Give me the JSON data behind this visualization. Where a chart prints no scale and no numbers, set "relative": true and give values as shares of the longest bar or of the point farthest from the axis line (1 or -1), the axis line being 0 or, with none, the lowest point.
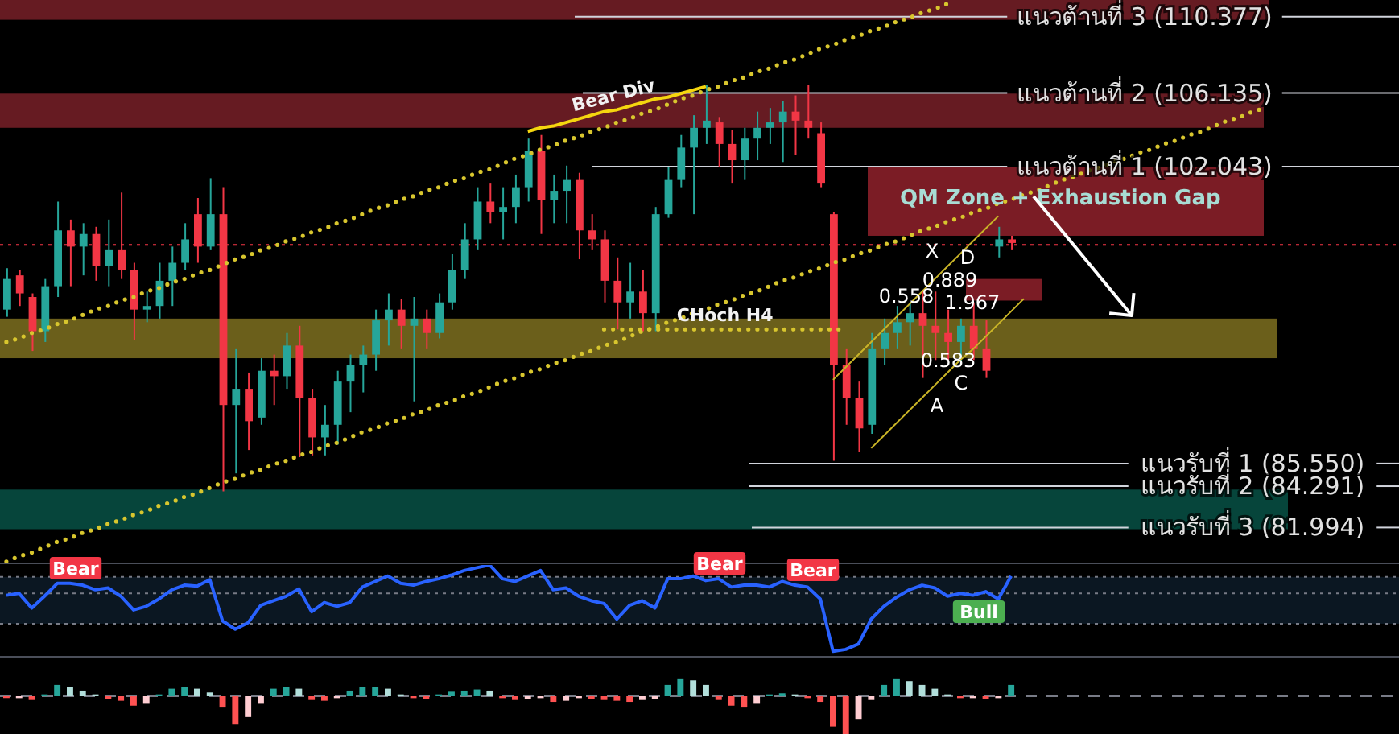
{
  "chart_data": [
    {
      "type": "candlestick",
      "categories": [
        null,
        null,
        null,
        null,
        null,
        null,
        null,
        null,
        null,
        null,
        null,
        null,
        null,
        null,
        null,
        null,
        null,
        null,
        null,
        null,
        null,
        null,
        null,
        null,
        null,
        null,
        null,
        null,
        null,
        null,
        null,
        null,
        null,
        null,
        null,
        null,
        null,
        null,
        null,
        null,
        null,
        null,
        null,
        null,
        null,
        null,
        null,
        null,
        null,
        null,
        null,
        null,
        null,
        null,
        null,
        null,
        null,
        null,
        null,
        null,
        null,
        null,
        null,
        null,
        null,
        null,
        null,
        null,
        null,
        null,
        null,
        null,
        null,
        null,
        null,
        null,
        null,
        null,
        null,
        null,
        null,
        null,
        null,
        null,
        null,
        null,
        null,
        null,
        null,
        null,
        null,
        null,
        null,
        null,
        null,
        null,
        null,
        null,
        null,
        null,
        null,
        null,
        null,
        null,
        null,
        null,
        null,
        null,
        null,
        null
      ],
      "ohlc": [
        [
          94.1,
          96.4,
          93.7,
          95.8
        ],
        [
          96.0,
          96.3,
          94.3,
          95.0
        ],
        [
          94.8,
          95.0,
          91.8,
          92.9
        ],
        [
          92.9,
          95.8,
          92.3,
          95.4
        ],
        [
          95.4,
          100.1,
          94.8,
          98.5
        ],
        [
          98.5,
          99.1,
          95.4,
          97.6
        ],
        [
          97.6,
          98.9,
          96.0,
          98.3
        ],
        [
          98.3,
          98.7,
          95.7,
          96.5
        ],
        [
          96.5,
          99.1,
          95.4,
          97.4
        ],
        [
          97.4,
          100.6,
          95.8,
          96.3
        ],
        [
          96.3,
          96.7,
          92.4,
          94.1
        ],
        [
          94.1,
          95.1,
          93.4,
          94.3
        ],
        [
          94.3,
          96.7,
          93.6,
          95.7
        ],
        [
          95.7,
          97.6,
          94.3,
          96.7
        ],
        [
          96.7,
          98.9,
          96.3,
          98.0
        ],
        [
          99.4,
          100.3,
          96.7,
          97.6
        ],
        [
          97.6,
          101.4,
          97.4,
          99.4
        ],
        [
          99.4,
          100.9,
          84.0,
          88.8
        ],
        [
          88.8,
          91.9,
          85.0,
          89.7
        ],
        [
          89.7,
          90.6,
          86.3,
          87.9
        ],
        [
          88.1,
          91.4,
          87.7,
          90.7
        ],
        [
          90.7,
          91.6,
          88.8,
          90.4
        ],
        [
          90.4,
          92.8,
          89.7,
          92.1
        ],
        [
          92.1,
          93.2,
          85.9,
          89.2
        ],
        [
          89.2,
          89.7,
          86.0,
          87.0
        ],
        [
          87.0,
          88.8,
          86.0,
          87.7
        ],
        [
          87.7,
          90.7,
          86.6,
          90.1
        ],
        [
          90.1,
          91.6,
          88.4,
          91.0
        ],
        [
          91.0,
          92.1,
          89.5,
          91.6
        ],
        [
          91.6,
          94.1,
          90.7,
          93.5
        ],
        [
          93.5,
          95.0,
          92.1,
          94.1
        ],
        [
          94.1,
          94.7,
          91.9,
          93.2
        ],
        [
          93.2,
          94.8,
          89.0,
          93.6
        ],
        [
          93.6,
          94.1,
          91.9,
          92.8
        ],
        [
          92.8,
          95.0,
          92.5,
          94.5
        ],
        [
          94.5,
          97.2,
          94.1,
          96.3
        ],
        [
          96.3,
          98.9,
          95.8,
          98.0
        ],
        [
          98.0,
          100.9,
          97.4,
          100.1
        ],
        [
          100.1,
          101.1,
          98.9,
          99.5
        ],
        [
          99.5,
          100.9,
          98.0,
          99.8
        ],
        [
          99.8,
          101.6,
          98.9,
          100.9
        ],
        [
          100.9,
          103.6,
          100.1,
          102.9
        ],
        [
          102.9,
          103.8,
          98.3,
          100.2
        ],
        [
          100.2,
          101.6,
          98.9,
          100.7
        ],
        [
          100.7,
          102.1,
          98.9,
          101.3
        ],
        [
          101.3,
          101.7,
          96.9,
          98.5
        ],
        [
          98.5,
          99.4,
          97.4,
          98.0
        ],
        [
          98.0,
          98.5,
          94.5,
          95.7
        ],
        [
          95.7,
          97.0,
          93.0,
          94.5
        ],
        [
          94.5,
          96.7,
          93.6,
          95.1
        ],
        [
          95.1,
          96.3,
          92.9,
          93.9
        ],
        [
          93.9,
          99.8,
          92.9,
          99.4
        ],
        [
          99.4,
          102.0,
          99.2,
          101.3
        ],
        [
          101.3,
          103.8,
          100.9,
          103.1
        ],
        [
          103.1,
          104.9,
          99.4,
          104.2
        ],
        [
          104.2,
          106.6,
          103.3,
          104.6
        ],
        [
          104.5,
          104.8,
          102.0,
          103.3
        ],
        [
          103.3,
          104.1,
          101.1,
          102.4
        ],
        [
          102.4,
          104.2,
          101.3,
          103.6
        ],
        [
          103.6,
          105.1,
          102.4,
          104.2
        ],
        [
          104.2,
          105.3,
          103.3,
          104.5
        ],
        [
          104.5,
          105.7,
          102.3,
          105.1
        ],
        [
          105.1,
          106.0,
          102.7,
          104.6
        ],
        [
          104.6,
          106.6,
          103.6,
          104.2
        ],
        [
          103.9,
          104.5,
          100.9,
          101.1
        ],
        [
          99.4,
          99.5,
          85.7,
          91.0
        ],
        [
          91.0,
          91.9,
          87.7,
          89.2
        ],
        [
          89.2,
          90.1,
          86.2,
          87.5
        ],
        [
          87.7,
          92.8,
          87.2,
          91.9
        ],
        [
          91.9,
          93.6,
          91.0,
          92.8
        ],
        [
          92.8,
          94.3,
          91.9,
          93.4
        ],
        [
          93.4,
          94.5,
          92.1,
          93.9
        ],
        [
          93.9,
          95.2,
          90.3,
          93.2
        ],
        [
          93.2,
          95.1,
          91.3,
          92.8
        ],
        [
          92.8,
          94.1,
          91.3,
          92.3
        ],
        [
          92.3,
          93.6,
          91.0,
          93.2
        ],
        [
          93.2,
          94.5,
          91.3,
          91.9
        ],
        [
          91.9,
          93.5,
          90.3,
          90.7
        ],
        [
          97.6,
          98.7,
          97.0,
          98.0
        ],
        [
          98.0,
          98.2,
          97.4,
          97.8
        ],
        null,
        null,
        null,
        null,
        null,
        null,
        null,
        null,
        null,
        null,
        null,
        null,
        null,
        null,
        null,
        null,
        null,
        null,
        null,
        null,
        null,
        null,
        null,
        null,
        null,
        null,
        null,
        null,
        null,
        null
      ],
      "colors": [
        "#26a69a",
        "#f23645",
        "#f23645",
        "#26a69a",
        "#26a69a",
        "#f23645",
        "#26a69a",
        "#f23645",
        "#26a69a",
        "#f23645",
        "#f23645",
        "#26a69a",
        "#26a69a",
        "#26a69a",
        "#26a69a",
        "#f23645",
        "#26a69a",
        "#f23645",
        "#26a69a",
        "#f23645",
        "#26a69a",
        "#f23645",
        "#26a69a",
        "#f23645",
        "#f23645",
        "#26a69a",
        "#26a69a",
        "#26a69a",
        "#26a69a",
        "#26a69a",
        "#26a69a",
        "#f23645",
        "#26a69a",
        "#f23645",
        "#26a69a",
        "#26a69a",
        "#26a69a",
        "#26a69a",
        "#f23645",
        "#26a69a",
        "#26a69a",
        "#26a69a",
        "#f23645",
        "#26a69a",
        "#26a69a",
        "#f23645",
        "#f23645",
        "#f23645",
        "#f23645",
        "#26a69a",
        "#f23645",
        "#26a69a",
        "#26a69a",
        "#26a69a",
        "#26a69a",
        "#26a69a",
        "#f23645",
        "#f23645",
        "#26a69a",
        "#26a69a",
        "#26a69a",
        "#26a69a",
        "#f23645",
        "#f23645",
        "#f23645",
        "#f23645",
        "#f23645",
        "#f23645",
        "#26a69a",
        "#26a69a",
        "#26a69a",
        "#26a69a",
        "#f23645",
        "#f23645",
        "#f23645",
        "#26a69a",
        "#f23645",
        "#f23645",
        "#26a69a",
        "#f23645",
        null,
        null,
        null,
        null,
        null,
        null,
        null,
        null,
        null,
        null,
        null,
        null,
        null,
        null,
        null,
        null,
        null,
        null,
        null,
        null,
        null,
        null,
        null,
        null,
        null,
        null,
        null,
        null,
        null,
        null
      ],
      "ylim": [
        80,
        111.3
      ],
      "tick_labels": false,
      "series": [
        {
          "type": "line",
          "color": "#d8c62e",
          "line_style": "dotted",
          "values": [
            92.3,
            92.5,
            92.8,
            93.0,
            93.3,
            93.5,
            93.8,
            94.1,
            94.3,
            94.6,
            94.8,
            95.1,
            95.3,
            95.6,
            95.8,
            96.1,
            96.3,
            96.6,
            96.9,
            97.1,
            97.4,
            97.6,
            97.9,
            98.1,
            98.4,
            98.6,
            98.9,
            99.1,
            99.4,
            99.7,
            99.9,
            100.2,
            100.4,
            100.7,
            100.9,
            101.2,
            101.4,
            101.7,
            101.9,
            102.2,
            102.5,
            102.7,
            103.0,
            103.2,
            103.5,
            103.7,
            104.0,
            104.2,
            104.5,
            104.7,
            105.0,
            105.2,
            105.5,
            105.8,
            106.0,
            106.3,
            106.5,
            106.8,
            107.0,
            107.3,
            107.5,
            107.8,
            108.0,
            108.3,
            108.6,
            108.8,
            109.1,
            109.3,
            109.6,
            109.8,
            110.1,
            110.3,
            110.6,
            110.8,
            111.1,
            null,
            null,
            null,
            null,
            null,
            null,
            null,
            null,
            null,
            null,
            null,
            null,
            null,
            null,
            null,
            null,
            null,
            null,
            null,
            null,
            null,
            null,
            null,
            null,
            null,
            null,
            null,
            null,
            null,
            null,
            null,
            null,
            null,
            null,
            null
          ]
        },
        {
          "type": "line",
          "color": "#d8c62e",
          "line_style": "dotted",
          "values": [
            80.1,
            80.4,
            80.6,
            80.9,
            81.2,
            81.4,
            81.7,
            81.9,
            82.2,
            82.4,
            82.7,
            82.9,
            83.2,
            83.4,
            83.7,
            83.9,
            84.2,
            84.5,
            84.7,
            85.0,
            85.2,
            85.5,
            85.7,
            86.0,
            86.2,
            86.5,
            86.7,
            87.0,
            87.3,
            87.5,
            87.8,
            88.0,
            88.3,
            88.5,
            88.8,
            89.0,
            89.3,
            89.5,
            89.8,
            90.1,
            90.3,
            90.6,
            90.8,
            91.1,
            91.3,
            91.6,
            91.8,
            92.1,
            92.3,
            92.6,
            92.9,
            93.1,
            93.4,
            93.6,
            93.9,
            94.1,
            94.4,
            94.6,
            94.9,
            95.1,
            95.4,
            95.7,
            95.9,
            96.2,
            96.4,
            96.7,
            96.9,
            97.2,
            97.4,
            97.7,
            97.9,
            98.2,
            98.5,
            98.7,
            99.0,
            99.2,
            99.5,
            99.7,
            100.0,
            100.2,
            100.5,
            100.7,
            101.0,
            101.3,
            101.5,
            101.8,
            102.0,
            102.3,
            102.5,
            102.8,
            103.0,
            103.3,
            103.5,
            103.8,
            104.0,
            104.3,
            104.6,
            104.8,
            105.1,
            105.3,
            null,
            null,
            null,
            null,
            null,
            null,
            null,
            null,
            null,
            null
          ]
        },
        {
          "type": "line",
          "name": "Bear Div",
          "color": "#f5d60f",
          "values": [
            null,
            null,
            null,
            null,
            null,
            null,
            null,
            null,
            null,
            null,
            null,
            null,
            null,
            null,
            null,
            null,
            null,
            null,
            null,
            null,
            null,
            null,
            null,
            null,
            null,
            null,
            null,
            null,
            null,
            null,
            null,
            null,
            null,
            null,
            null,
            null,
            null,
            null,
            null,
            null,
            null,
            104.0,
            104.2,
            104.3,
            104.5,
            104.7,
            104.9,
            105.1,
            105.2,
            105.4,
            105.6,
            105.8,
            105.9,
            106.1,
            106.3,
            106.5,
            null,
            null,
            null,
            null,
            null,
            null,
            null,
            null,
            null,
            null,
            null,
            null,
            null,
            null,
            null,
            null,
            null,
            null,
            null,
            null,
            null,
            null,
            null,
            null,
            null,
            null,
            null,
            null,
            null,
            null,
            null,
            null,
            null,
            null,
            null,
            null,
            null,
            null,
            null,
            null,
            null,
            null,
            null,
            null,
            null,
            null,
            null,
            null,
            null,
            null,
            null,
            null,
            null,
            null
          ]
        },
        {
          "type": "line",
          "name": "CHoch H4",
          "color": "#d8c62e",
          "line_style": "dotted",
          "values": [
            null,
            null,
            null,
            null,
            null,
            null,
            null,
            null,
            null,
            null,
            null,
            null,
            null,
            null,
            null,
            null,
            null,
            null,
            null,
            null,
            null,
            null,
            null,
            null,
            null,
            null,
            null,
            null,
            null,
            null,
            null,
            null,
            null,
            null,
            null,
            null,
            null,
            null,
            null,
            null,
            null,
            null,
            null,
            null,
            null,
            null,
            null,
            93.0,
            93.0,
            93.0,
            93.0,
            93.0,
            93.0,
            93.0,
            93.0,
            93.0,
            93.0,
            93.0,
            93.0,
            93.0,
            93.0,
            93.0,
            93.0,
            93.0,
            93.0,
            93.0,
            93.0,
            null,
            null,
            null,
            null,
            null,
            null,
            null,
            null,
            null,
            null,
            null,
            null,
            null,
            null,
            null,
            null,
            null,
            null,
            null,
            null,
            null,
            null,
            null,
            null,
            null,
            null,
            null,
            null,
            null,
            null,
            null,
            null,
            null,
            null,
            null,
            null,
            null,
            null,
            null,
            null,
            null,
            null,
            null
          ]
        },
        {
          "type": "line",
          "color": "#c9b427",
          "values": [
            null,
            null,
            null,
            null,
            null,
            null,
            null,
            null,
            null,
            null,
            null,
            null,
            null,
            null,
            null,
            null,
            null,
            null,
            null,
            null,
            null,
            null,
            null,
            null,
            null,
            null,
            null,
            null,
            null,
            null,
            null,
            null,
            null,
            null,
            null,
            null,
            null,
            null,
            null,
            null,
            null,
            null,
            null,
            null,
            null,
            null,
            null,
            null,
            null,
            null,
            null,
            null,
            null,
            null,
            null,
            null,
            null,
            null,
            null,
            null,
            null,
            null,
            null,
            null,
            null,
            90.2,
            90.9,
            91.6,
            92.3,
            93.0,
            93.7,
            94.4,
            95.1,
            95.8,
            96.5,
            97.2,
            97.9,
            98.6,
            99.3,
            null,
            null,
            null,
            null,
            null,
            null,
            null,
            null,
            null,
            null,
            null,
            null,
            null,
            null,
            null,
            null,
            null,
            null,
            null,
            null,
            null,
            null,
            null,
            null,
            null,
            null,
            null,
            null,
            null,
            null,
            null
          ]
        },
        {
          "type": "line",
          "color": "#c9b427",
          "values": [
            null,
            null,
            null,
            null,
            null,
            null,
            null,
            null,
            null,
            null,
            null,
            null,
            null,
            null,
            null,
            null,
            null,
            null,
            null,
            null,
            null,
            null,
            null,
            null,
            null,
            null,
            null,
            null,
            null,
            null,
            null,
            null,
            null,
            null,
            null,
            null,
            null,
            null,
            null,
            null,
            null,
            null,
            null,
            null,
            null,
            null,
            null,
            null,
            null,
            null,
            null,
            null,
            null,
            null,
            null,
            null,
            null,
            null,
            null,
            null,
            null,
            null,
            null,
            null,
            null,
            null,
            null,
            null,
            86.4,
            87.1,
            87.8,
            88.5,
            89.2,
            89.9,
            90.6,
            91.3,
            91.9,
            92.6,
            93.3,
            94.0,
            94.7,
            null,
            null,
            null,
            null,
            null,
            null,
            null,
            null,
            null,
            null,
            null,
            null,
            null,
            null,
            null,
            null,
            null,
            null,
            null,
            null,
            null,
            null,
            null,
            null,
            null,
            null,
            null,
            null,
            null
          ]
        }
      ],
      "ref_lines": [
        {
          "axis": "y",
          "value": 110.377,
          "label": "แนวต้านที่ 3 (110.377)",
          "color": "#d1d4dc"
        },
        {
          "axis": "y",
          "value": 106.135,
          "label": "แนวต้านที่ 2 (106.135)",
          "color": "#d1d4dc"
        },
        {
          "axis": "y",
          "value": 102.043,
          "label": "แนวต้านที่ 1 (102.043)",
          "color": "#d1d4dc"
        },
        {
          "axis": "y",
          "value": 85.55,
          "label": "แนวรับที่ 1 (85.550)",
          "color": "#d1d4dc"
        },
        {
          "axis": "y",
          "value": 84.291,
          "label": "แนวรับที่ 2 (84.291)",
          "color": "#d1d4dc"
        },
        {
          "axis": "y",
          "value": 81.994,
          "label": "แนวรับที่ 3 (81.994)",
          "color": "#d1d4dc"
        },
        {
          "axis": "y",
          "value": 97.7,
          "color": "#f23645",
          "line_style": "dotted"
        }
      ],
      "bands": [
        {
          "axis": "y",
          "from": 110.2,
          "to": 111.3,
          "color": "#661b22"
        },
        {
          "axis": "y",
          "from": 104.2,
          "to": 106.1,
          "color": "#661b22"
        },
        {
          "axis": "y",
          "from": 98.2,
          "to": 102.0,
          "label": "QM Zone + Exhaustion Gap",
          "color": "#7b1c25"
        },
        {
          "axis": "y",
          "from": 94.6,
          "to": 95.8,
          "color": "#7b1c25"
        },
        {
          "axis": "y",
          "from": 91.4,
          "to": 93.6,
          "color": "#6b5f1b"
        },
        {
          "axis": "y",
          "from": 81.9,
          "to": 84.1,
          "color": "#06453b"
        }
      ],
      "annotations": [
        "X",
        "D",
        "0.889",
        "0.558",
        "1.967",
        "0.583",
        "C",
        "A"
      ]
    },
    {
      "type": "line",
      "relative": true,
      "categories": [
        null,
        null,
        null,
        null,
        null,
        null,
        null,
        null,
        null,
        null,
        null,
        null,
        null,
        null,
        null,
        null,
        null,
        null,
        null,
        null,
        null,
        null,
        null,
        null,
        null,
        null,
        null,
        null,
        null,
        null,
        null,
        null,
        null,
        null,
        null,
        null,
        null,
        null,
        null,
        null,
        null,
        null,
        null,
        null,
        null,
        null,
        null,
        null,
        null,
        null,
        null,
        null,
        null,
        null,
        null,
        null,
        null,
        null,
        null,
        null,
        null,
        null,
        null,
        null,
        null,
        null,
        null,
        null,
        null,
        null,
        null,
        null,
        null,
        null,
        null,
        null,
        null,
        null,
        null,
        null,
        null,
        null,
        null,
        null,
        null,
        null,
        null,
        null,
        null,
        null,
        null,
        null,
        null,
        null,
        null,
        null,
        null,
        null,
        null,
        null,
        null,
        null,
        null,
        null,
        null,
        null,
        null,
        null,
        null,
        null
      ],
      "series": [
        {
          "color": "#2962ff",
          "values": [
            0.67,
            0.69,
            0.53,
            0.66,
            0.8,
            0.8,
            0.78,
            0.73,
            0.75,
            0.66,
            0.51,
            0.55,
            0.63,
            0.73,
            0.78,
            0.77,
            0.84,
            0.39,
            0.3,
            0.37,
            0.56,
            0.61,
            0.66,
            0.74,
            0.49,
            0.59,
            0.55,
            0.59,
            0.76,
            0.82,
            0.88,
            0.8,
            0.78,
            0.82,
            0.85,
            0.89,
            0.94,
            0.97,
            1,
            0.85,
            0.82,
            0.88,
            0.94,
            0.73,
            0.75,
            0.66,
            0.61,
            0.58,
            0.41,
            0.56,
            0.61,
            0.53,
            0.85,
            0.85,
            0.88,
            0.83,
            0.85,
            0.76,
            0.78,
            0.78,
            0.76,
            0.82,
            0.78,
            0.76,
            0.63,
            0.06,
            0.08,
            0.14,
            0.41,
            0.55,
            0.65,
            0.73,
            0.78,
            0.75,
            0.66,
            0.69,
            0.67,
            0.71,
            0.63,
            0.88,
            null,
            null,
            null,
            null,
            null,
            null,
            null,
            null,
            null,
            null,
            null,
            null,
            null,
            null,
            null,
            null,
            null,
            null,
            null,
            null,
            null,
            null,
            null,
            null,
            null,
            null,
            null,
            null,
            null,
            null
          ]
        }
      ],
      "ref_lines": [
        {
          "axis": "y",
          "value": 0.87,
          "color": "#787b86",
          "line_style": "dotted"
        },
        {
          "axis": "y",
          "value": 0.69,
          "color": "#787b86",
          "line_style": "dotted"
        },
        {
          "axis": "y",
          "value": 0.36,
          "color": "#787b86",
          "line_style": "dotted"
        }
      ],
      "bands": [
        {
          "axis": "y",
          "from": 0.36,
          "to": 0.87,
          "color": "#0b1722"
        }
      ],
      "annotations": [
        "Bear",
        "Bear",
        "Bear",
        "Bull"
      ]
    },
    {
      "type": "bar",
      "relative": true,
      "categories": [
        null,
        null,
        null,
        null,
        null,
        null,
        null,
        null,
        null,
        null,
        null,
        null,
        null,
        null,
        null,
        null,
        null,
        null,
        null,
        null,
        null,
        null,
        null,
        null,
        null,
        null,
        null,
        null,
        null,
        null,
        null,
        null,
        null,
        null,
        null,
        null,
        null,
        null,
        null,
        null,
        null,
        null,
        null,
        null,
        null,
        null,
        null,
        null,
        null,
        null,
        null,
        null,
        null,
        null,
        null,
        null,
        null,
        null,
        null,
        null,
        null,
        null,
        null,
        null,
        null,
        null,
        null,
        null,
        null,
        null,
        null,
        null,
        null,
        null,
        null,
        null,
        null,
        null,
        null,
        null,
        null,
        null,
        null,
        null,
        null,
        null,
        null,
        null,
        null,
        null,
        null,
        null,
        null,
        null,
        null,
        null,
        null,
        null,
        null,
        null,
        null,
        null,
        null,
        null,
        null,
        null,
        null,
        null,
        null,
        null
      ],
      "values": [
        -0.05,
        -0.05,
        -0.1,
        0.05,
        0.3,
        0.25,
        0.15,
        0.05,
        -0.08,
        -0.12,
        -0.25,
        -0.2,
        0.05,
        0.2,
        0.25,
        0.2,
        0.1,
        -0.3,
        -0.75,
        -0.55,
        -0.2,
        0.2,
        0.25,
        0.2,
        -0.1,
        -0.12,
        -0.05,
        0.15,
        0.25,
        0.25,
        0.2,
        0.05,
        -0.05,
        -0.08,
        0.05,
        0.12,
        0.15,
        0.18,
        0.15,
        -0.05,
        -0.1,
        -0.08,
        -0.05,
        -0.15,
        -0.12,
        -0.05,
        -0.08,
        -0.1,
        -0.12,
        -0.15,
        -0.1,
        -0.08,
        0.3,
        0.45,
        0.42,
        0.3,
        -0.1,
        -0.25,
        -0.3,
        -0.2,
        0.05,
        0.08,
        0.05,
        -0.05,
        -0.15,
        -0.8,
        -1,
        -0.6,
        -0.1,
        0.3,
        0.45,
        0.4,
        0.3,
        0.2,
        0.05,
        -0.05,
        -0.05,
        -0.08,
        -0.05,
        0.3,
        null,
        null,
        null,
        null,
        null,
        null,
        null,
        null,
        null,
        null,
        null,
        null,
        null,
        null,
        null,
        null,
        null,
        null,
        null,
        null,
        null,
        null,
        null,
        null,
        null,
        null,
        null,
        null,
        null,
        null
      ],
      "colors": [
        "#ff5252",
        "#ffcdd2",
        "#ff5252",
        "#26a69a",
        "#26a69a",
        "#b2dfdb",
        "#b2dfdb",
        "#b2dfdb",
        "#ff5252",
        "#ff5252",
        "#ff5252",
        "#ffcdd2",
        "#26a69a",
        "#26a69a",
        "#26a69a",
        "#b2dfdb",
        "#b2dfdb",
        "#ff5252",
        "#ff5252",
        "#ffcdd2",
        "#ffcdd2",
        "#26a69a",
        "#26a69a",
        "#b2dfdb",
        "#ff5252",
        "#ff5252",
        "#ffcdd2",
        "#26a69a",
        "#26a69a",
        "#26a69a",
        "#b2dfdb",
        "#b2dfdb",
        "#ff5252",
        "#ff5252",
        "#26a69a",
        "#26a69a",
        "#26a69a",
        "#26a69a",
        "#b2dfdb",
        "#ff5252",
        "#ff5252",
        "#ffcdd2",
        "#ffcdd2",
        "#ff5252",
        "#ffcdd2",
        "#ffcdd2",
        "#ff5252",
        "#ff5252",
        "#ff5252",
        "#ff5252",
        "#ffcdd2",
        "#ffcdd2",
        "#26a69a",
        "#26a69a",
        "#b2dfdb",
        "#b2dfdb",
        "#ff5252",
        "#ff5252",
        "#ff5252",
        "#ffcdd2",
        "#26a69a",
        "#26a69a",
        "#b2dfdb",
        "#ff5252",
        "#ff5252",
        "#ff5252",
        "#ff5252",
        "#ffcdd2",
        "#ffcdd2",
        "#26a69a",
        "#26a69a",
        "#b2dfdb",
        "#b2dfdb",
        "#b2dfdb",
        "#b2dfdb",
        "#ff5252",
        "#ffcdd2",
        "#ff5252",
        "#ffcdd2",
        "#26a69a",
        null,
        null,
        null,
        null,
        null,
        null,
        null,
        null,
        null,
        null,
        null,
        null,
        null,
        null,
        null,
        null,
        null,
        null,
        null,
        null,
        null,
        null,
        null,
        null,
        null,
        null,
        null,
        null,
        null,
        null
      ],
      "ref_lines": [
        {
          "axis": "y",
          "value": 0,
          "color": "#787b86",
          "line_style": "dashed"
        }
      ]
    }
  ]
}
